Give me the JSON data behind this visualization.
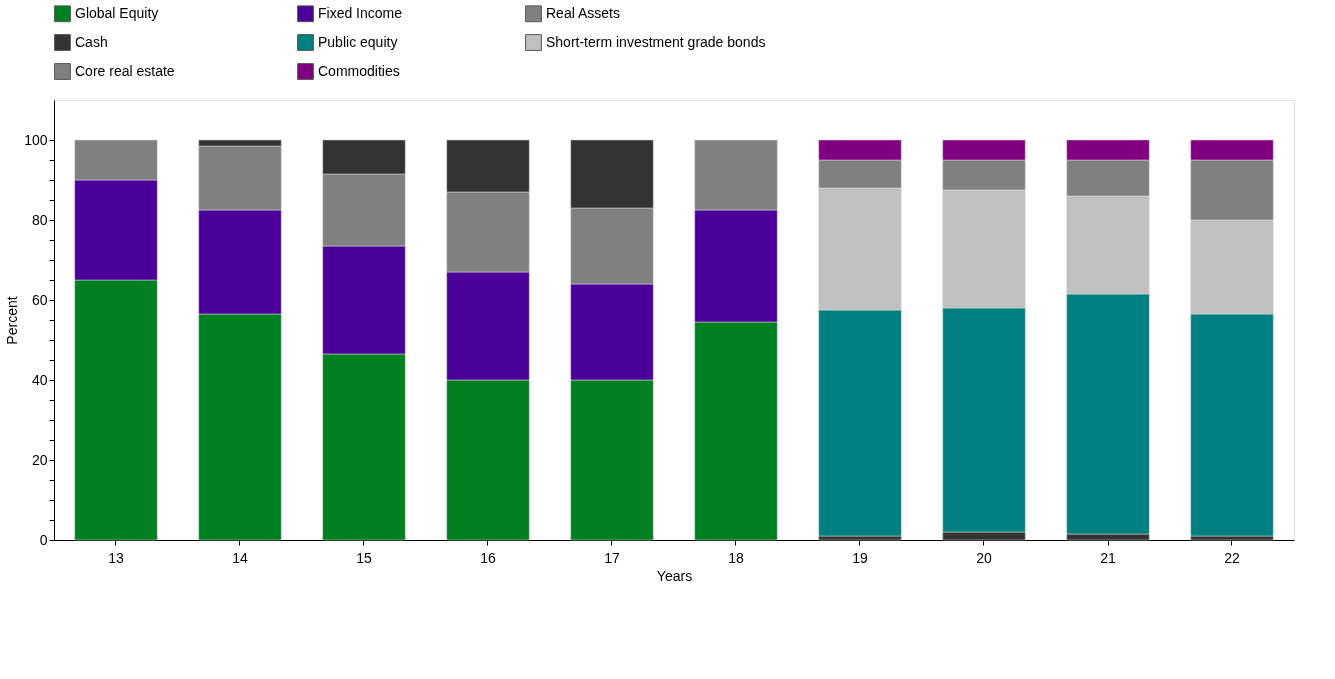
{
  "chart_data": {
    "type": "bar",
    "stacked": true,
    "xlabel": "Years",
    "ylabel": "Percent",
    "categories": [
      "13",
      "14",
      "15",
      "16",
      "17",
      "18",
      "19",
      "20",
      "21",
      "22"
    ],
    "series": [
      {
        "name": "Global Equity",
        "color": "#008020",
        "values": [
          65,
          56.5,
          46.5,
          40,
          40,
          54.5,
          null,
          null,
          null,
          null
        ]
      },
      {
        "name": "Fixed Income",
        "color": "#4b0099",
        "values": [
          25,
          26,
          27,
          27,
          24,
          28,
          null,
          null,
          null,
          null
        ]
      },
      {
        "name": "Real Assets",
        "color": "#808080",
        "values": [
          10,
          16,
          18,
          20,
          19,
          17.5,
          null,
          null,
          null,
          null
        ]
      },
      {
        "name": "Cash",
        "color": "#333333",
        "values": [
          null,
          1.5,
          8.5,
          13,
          17,
          null,
          1,
          2,
          1.5,
          1
        ]
      },
      {
        "name": "Public equity",
        "color": "#008080",
        "values": [
          null,
          null,
          null,
          null,
          null,
          null,
          56.5,
          56,
          60,
          55.5
        ]
      },
      {
        "name": "Short-term investment grade bonds",
        "color": "#c0c0c0",
        "values": [
          null,
          null,
          null,
          null,
          null,
          null,
          30.5,
          29.5,
          24.5,
          23.5
        ]
      },
      {
        "name": "Core real estate",
        "color": "#808080",
        "values": [
          null,
          null,
          null,
          null,
          null,
          null,
          7,
          7.5,
          9,
          15
        ]
      },
      {
        "name": "Commodities",
        "color": "#800080",
        "values": [
          null,
          null,
          null,
          null,
          null,
          null,
          5,
          5,
          5,
          5
        ]
      }
    ],
    "ylim": [
      0,
      110
    ],
    "yticks": [
      0,
      {
        "value": 5,
        "label": null
      },
      {
        "value": 10,
        "label": null
      },
      {
        "value": 15,
        "label": null
      },
      20,
      {
        "value": 25,
        "label": null
      },
      {
        "value": 30,
        "label": null
      },
      {
        "value": 35,
        "label": null
      },
      40,
      {
        "value": 45,
        "label": null
      },
      {
        "value": 50,
        "label": null
      },
      {
        "value": 55,
        "label": null
      },
      60,
      {
        "value": 65,
        "label": null
      },
      {
        "value": 70,
        "label": null
      },
      {
        "value": 75,
        "label": null
      },
      80,
      {
        "value": 85,
        "label": null
      },
      {
        "value": 90,
        "label": null
      },
      {
        "value": 95,
        "label": null
      },
      100
    ],
    "legend": "top",
    "grid": false
  }
}
